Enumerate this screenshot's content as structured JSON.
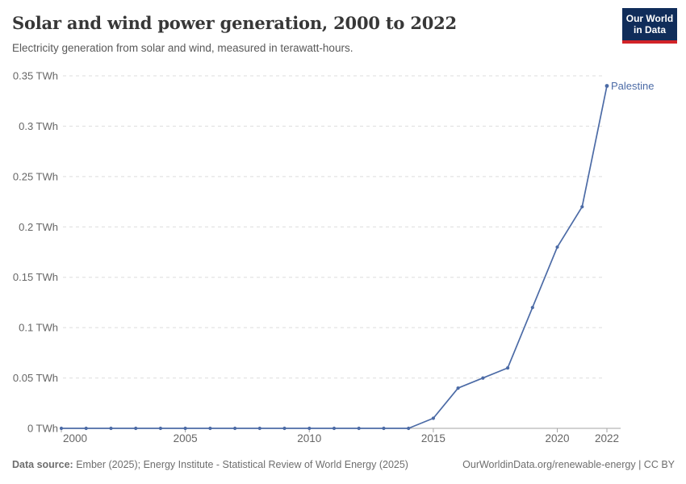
{
  "header": {
    "title": "Solar and wind power generation, 2000 to 2022",
    "subtitle": "Electricity generation from solar and wind, measured in terawatt-hours."
  },
  "logo": {
    "line1": "Our World",
    "line2": "in Data",
    "bg_color": "#102d5a",
    "accent_color": "#d22328"
  },
  "chart_data": {
    "type": "line",
    "title": "Solar and wind power generation, 2000 to 2022",
    "xlabel": "",
    "ylabel": "",
    "unit": "TWh",
    "grid": "horizontal-dashed",
    "legend_position": "end-of-line-label",
    "xlim": [
      2000,
      2022
    ],
    "ylim": [
      0,
      0.35
    ],
    "x": [
      2000,
      2001,
      2002,
      2003,
      2004,
      2005,
      2006,
      2007,
      2008,
      2009,
      2010,
      2011,
      2012,
      2013,
      2014,
      2015,
      2016,
      2017,
      2018,
      2019,
      2020,
      2021,
      2022
    ],
    "series": [
      {
        "name": "Palestine",
        "color": "#4c6ba6",
        "values": [
          0,
          0,
          0,
          0,
          0,
          0,
          0,
          0,
          0,
          0,
          0,
          0,
          0,
          0,
          0,
          0.01,
          0.04,
          0.05,
          0.06,
          0.12,
          0.18,
          0.22,
          0.34
        ]
      }
    ],
    "yticks": [
      {
        "value": 0,
        "label": "0 TWh"
      },
      {
        "value": 0.05,
        "label": "0.05 TWh"
      },
      {
        "value": 0.1,
        "label": "0.1 TWh"
      },
      {
        "value": 0.15,
        "label": "0.15 TWh"
      },
      {
        "value": 0.2,
        "label": "0.2 TWh"
      },
      {
        "value": 0.25,
        "label": "0.25 TWh"
      },
      {
        "value": 0.3,
        "label": "0.3 TWh"
      },
      {
        "value": 0.35,
        "label": "0.35 TWh"
      }
    ],
    "xticks": [
      {
        "value": 2000,
        "label": "2000"
      },
      {
        "value": 2005,
        "label": "2005"
      },
      {
        "value": 2010,
        "label": "2010"
      },
      {
        "value": 2015,
        "label": "2015"
      },
      {
        "value": 2020,
        "label": "2020"
      },
      {
        "value": 2022,
        "label": "2022"
      }
    ],
    "colors": {
      "gridline": "#dedede",
      "axis": "#a5a5a5",
      "tick_label": "#666666"
    }
  },
  "footer": {
    "source_label": "Data source:",
    "source_text": " Ember (2025); Energy Institute - Statistical Review of World Energy (2025)",
    "link_text": "OurWorldinData.org/renewable-energy | CC BY"
  }
}
